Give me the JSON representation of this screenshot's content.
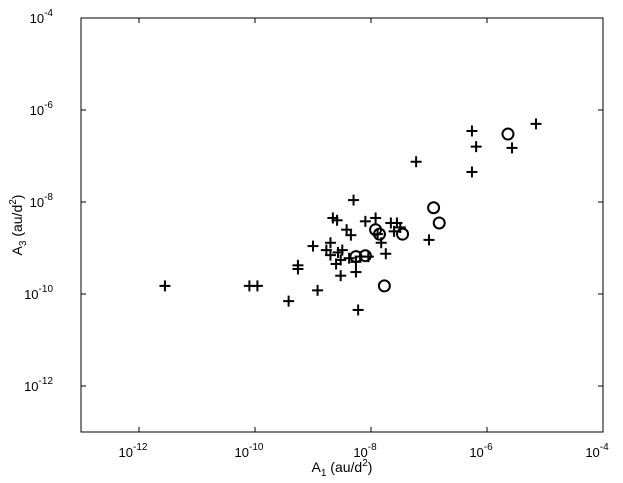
{
  "chart_data": {
    "type": "scatter",
    "title": "",
    "xlabel": {
      "base": "A",
      "sub": "1",
      "units": " (au/d",
      "sup": "2",
      "close": ")"
    },
    "ylabel": {
      "base": "A",
      "sub": "3",
      "units": " (au/d",
      "sup": "2",
      "close": ")"
    },
    "xscale": "log",
    "yscale": "log",
    "xlim": [
      1e-13,
      0.0001
    ],
    "ylim": [
      1e-13,
      0.0001
    ],
    "grid": false,
    "xticks": [
      {
        "value": 1e-12,
        "base": "10",
        "exp": "-12"
      },
      {
        "value": 1e-10,
        "base": "10",
        "exp": "-10"
      },
      {
        "value": 1e-08,
        "base": "10",
        "exp": "-8"
      },
      {
        "value": 1e-06,
        "base": "10",
        "exp": "-6"
      },
      {
        "value": 0.0001,
        "base": "10",
        "exp": "-4"
      }
    ],
    "yticks": [
      {
        "value": 1e-12,
        "base": "10",
        "exp": "-12"
      },
      {
        "value": 1e-10,
        "base": "10",
        "exp": "-10"
      },
      {
        "value": 1e-08,
        "base": "10",
        "exp": "-8"
      },
      {
        "value": 1e-06,
        "base": "10",
        "exp": "-6"
      },
      {
        "value": 0.0001,
        "base": "10",
        "exp": "-4"
      }
    ],
    "series": [
      {
        "marker": "plus",
        "points": [
          [
            2.8e-12,
            1.5e-10
          ],
          [
            8e-11,
            1.5e-10
          ],
          [
            1.1e-10,
            1.5e-10
          ],
          [
            5.5e-10,
            4.2e-10
          ],
          [
            5.5e-10,
            3.5e-10
          ],
          [
            3.8e-10,
            7e-11
          ],
          [
            1.2e-09,
            1.2e-10
          ],
          [
            1e-09,
            1.1e-09
          ],
          [
            1.7e-09,
            9e-10
          ],
          [
            2e-09,
            1.3e-09
          ],
          [
            2.2e-09,
            4.5e-09
          ],
          [
            2.6e-09,
            4e-09
          ],
          [
            2e-09,
            7e-10
          ],
          [
            2.5e-09,
            4.5e-10
          ],
          [
            2.7e-09,
            8e-10
          ],
          [
            3e-09,
            5.5e-10
          ],
          [
            3.2e-09,
            9e-10
          ],
          [
            3e-09,
            2.5e-10
          ],
          [
            3.8e-09,
            2.5e-09
          ],
          [
            4.2e-09,
            6e-10
          ],
          [
            4.5e-09,
            1.9e-09
          ],
          [
            5e-09,
            1.1e-08
          ],
          [
            5.5e-09,
            5e-10
          ],
          [
            5.5e-09,
            3e-10
          ],
          [
            6e-09,
            4.5e-11
          ],
          [
            6.5e-09,
            6.5e-10
          ],
          [
            8e-09,
            3.8e-09
          ],
          [
            9e-09,
            6.5e-10
          ],
          [
            1.2e-08,
            4.5e-09
          ],
          [
            1.3e-08,
            2e-09
          ],
          [
            1.5e-08,
            1.3e-09
          ],
          [
            1.8e-08,
            7.5e-10
          ],
          [
            2.2e-08,
            3.5e-09
          ],
          [
            2.5e-08,
            2.3e-09
          ],
          [
            2.8e-08,
            3.5e-09
          ],
          [
            3.2e-08,
            2.8e-09
          ],
          [
            6e-08,
            7.5e-08
          ],
          [
            1e-07,
            1.5e-09
          ],
          [
            5.5e-07,
            4.5e-08
          ],
          [
            5.5e-07,
            3.5e-07
          ],
          [
            6.5e-07,
            1.6e-07
          ],
          [
            2.7e-06,
            1.5e-07
          ],
          [
            7e-06,
            5e-07
          ]
        ]
      },
      {
        "marker": "circle",
        "points": [
          [
            5.5e-09,
            6.5e-10
          ],
          [
            8e-09,
            6.8e-10
          ],
          [
            1.2e-08,
            2.5e-09
          ],
          [
            1.4e-08,
            2e-09
          ],
          [
            1.7e-08,
            1.5e-10
          ],
          [
            3.5e-08,
            2e-09
          ],
          [
            1.2e-07,
            7.5e-09
          ],
          [
            1.5e-07,
            3.5e-09
          ],
          [
            2.3e-06,
            3e-07
          ]
        ]
      }
    ]
  }
}
